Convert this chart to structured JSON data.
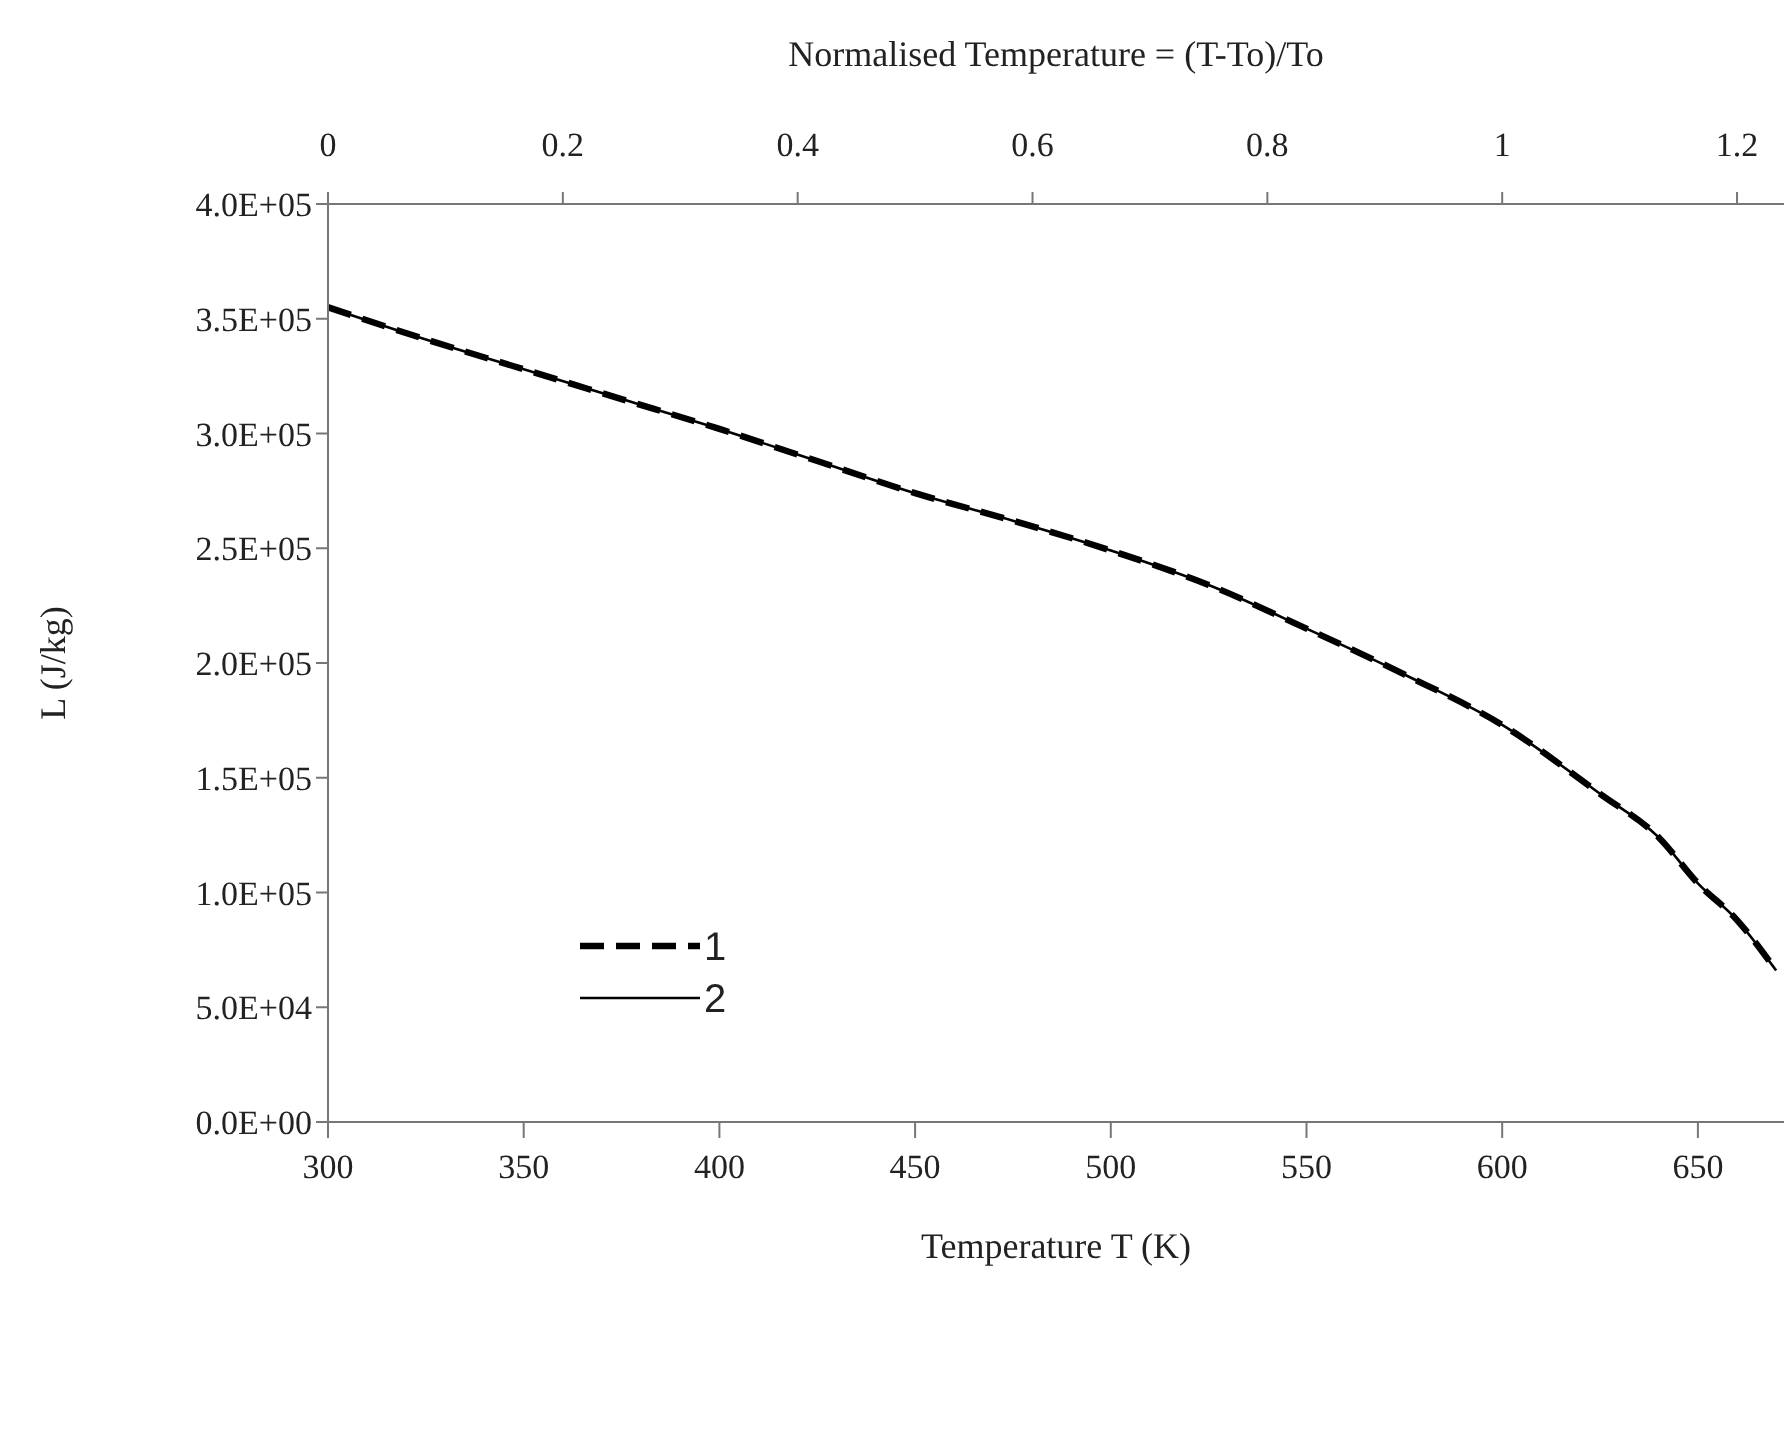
{
  "chart_data": {
    "type": "line",
    "xlabel": "Temperature T (K)",
    "ylabel": "L (J/kg)",
    "x2label": "Normalised Temperature = (T-To)/To",
    "x": [
      300,
      325,
      350,
      375,
      400,
      425,
      450,
      475,
      500,
      525,
      550,
      575,
      600,
      625,
      640,
      650,
      660,
      670
    ],
    "series": [
      {
        "name": "1",
        "color": "#000000",
        "line_style": "dashed",
        "values": [
          355000,
          341000,
          328000,
          315000,
          302000,
          288000,
          274000,
          262000,
          249000,
          234000,
          215000,
          195000,
          173000,
          143000,
          124000,
          104000,
          88000,
          66000
        ]
      },
      {
        "name": "2",
        "color": "#000000",
        "line_style": "solid",
        "values": [
          355000,
          341000,
          328000,
          315000,
          302000,
          288000,
          274000,
          262000,
          249000,
          234000,
          215000,
          195000,
          173000,
          143000,
          124000,
          104000,
          88000,
          66000
        ]
      }
    ],
    "xlim": [
      300,
      672
    ],
    "xticks": [
      300,
      350,
      400,
      450,
      500,
      550,
      600,
      650
    ],
    "x2lim": [
      0,
      1.24
    ],
    "x2ticks": [
      0,
      0.2,
      0.4,
      0.6,
      0.8,
      1,
      1.2
    ],
    "ylim": [
      0,
      400000
    ],
    "yticks": [
      {
        "value": 0,
        "label": "0.0E+00"
      },
      {
        "value": 50000,
        "label": "5.0E+04"
      },
      {
        "value": 100000,
        "label": "1.0E+05"
      },
      {
        "value": 150000,
        "label": "1.5E+05"
      },
      {
        "value": 200000,
        "label": "2.0E+05"
      },
      {
        "value": 250000,
        "label": "2.5E+05"
      },
      {
        "value": 300000,
        "label": "3.0E+05"
      },
      {
        "value": 350000,
        "label": "3.5E+05"
      },
      {
        "value": 400000,
        "label": "4.0E+05"
      }
    ],
    "grid": false,
    "legend": "left",
    "marker": "none"
  }
}
